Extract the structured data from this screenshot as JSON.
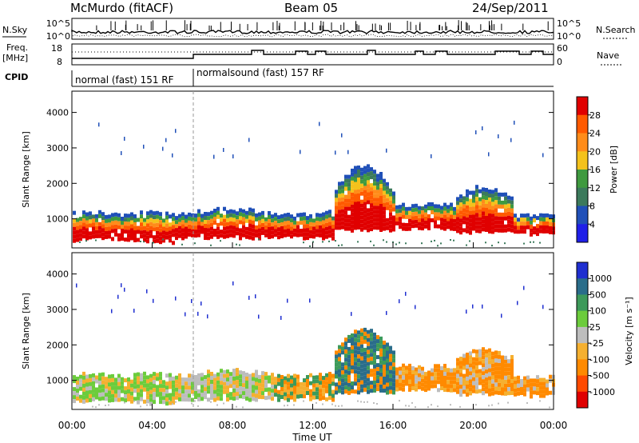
{
  "header": {
    "station": "McMurdo (fitACF)",
    "beam": "Beam 05",
    "date": "24/Sep/2011"
  },
  "noise_panel": {
    "left_label": "N.Sky",
    "right_label": "N.Search",
    "y_ticks_left": [
      "10^5",
      "10^0"
    ],
    "y_ticks_right": [
      "10^5",
      "10^0"
    ]
  },
  "freq_panel": {
    "left_label_1": "Freq.",
    "left_label_2": "[MHz]",
    "right_label": "Nave",
    "y_ticks_left": [
      "18",
      "8"
    ],
    "y_ticks_right": [
      "60",
      "0"
    ]
  },
  "cpid_panel": {
    "label": "CPID",
    "segments": [
      {
        "label": "normal (fast) 151 RF",
        "start_hour": 0.0,
        "end_hour": 6.0
      },
      {
        "label": "normalsound (fast) 157 RF",
        "start_hour": 6.0,
        "end_hour": 24.0
      }
    ]
  },
  "chart_data": [
    {
      "type": "heatmap",
      "name": "power",
      "ylabel": "Slant Range [km]",
      "colorbar_label": "Power [dB]",
      "y_ticks": [
        "4000",
        "3000",
        "2000",
        "1000"
      ],
      "colorbar_ticks": [
        "28",
        "24",
        "20",
        "16",
        "12",
        "8",
        "4"
      ],
      "colorbar_colors": [
        "#e00000",
        "#ff5a00",
        "#ff8c1a",
        "#f4c21c",
        "#3f9a3f",
        "#3c7a5c",
        "#2050b8",
        "#1f1fe8"
      ],
      "xlim_hours": [
        0,
        24
      ],
      "ylim_km": [
        180,
        4600
      ],
      "bands_km": [
        {
          "from_hour": 0,
          "to_hour": 5,
          "range_km": [
            400,
            1200
          ]
        },
        {
          "from_hour": 5,
          "to_hour": 13,
          "range_km": [
            500,
            1300
          ]
        },
        {
          "from_hour": 13,
          "to_hour": 16,
          "range_km": [
            700,
            2600
          ]
        },
        {
          "from_hour": 16,
          "to_hour": 24,
          "range_km": [
            600,
            1700
          ]
        }
      ]
    },
    {
      "type": "heatmap",
      "name": "velocity",
      "ylabel": "Slant Range [km]",
      "colorbar_label": "Velocity [m s⁻¹]",
      "y_ticks": [
        "4000",
        "3000",
        "2000",
        "1000"
      ],
      "colorbar_ticks": [
        "1000",
        "500",
        "100",
        "25",
        "-25",
        "-100",
        "-500",
        "-1000"
      ],
      "colorbar_colors": [
        "#1f2fd0",
        "#2a6d8a",
        "#3d9a5a",
        "#6ccc3c",
        "#bdbdbd",
        "#f5b030",
        "#ff8a00",
        "#ff4a00",
        "#e00000"
      ],
      "xlim_hours": [
        0,
        24
      ],
      "ylim_km": [
        180,
        4600
      ]
    }
  ],
  "x_axis": {
    "ticks": [
      "00:00",
      "04:00",
      "08:00",
      "12:00",
      "16:00",
      "20:00",
      "00:00"
    ],
    "label": "Time UT"
  },
  "colors": {
    "strong": "#e00000",
    "orange": "#ff8c1a",
    "yellow": "#f4c21c",
    "green": "#3f9a3f",
    "darkgreen": "#3c7a5c",
    "blue": "#2050b8",
    "gray": "#bdbdbd",
    "lightgreen": "#6ccc3c"
  }
}
